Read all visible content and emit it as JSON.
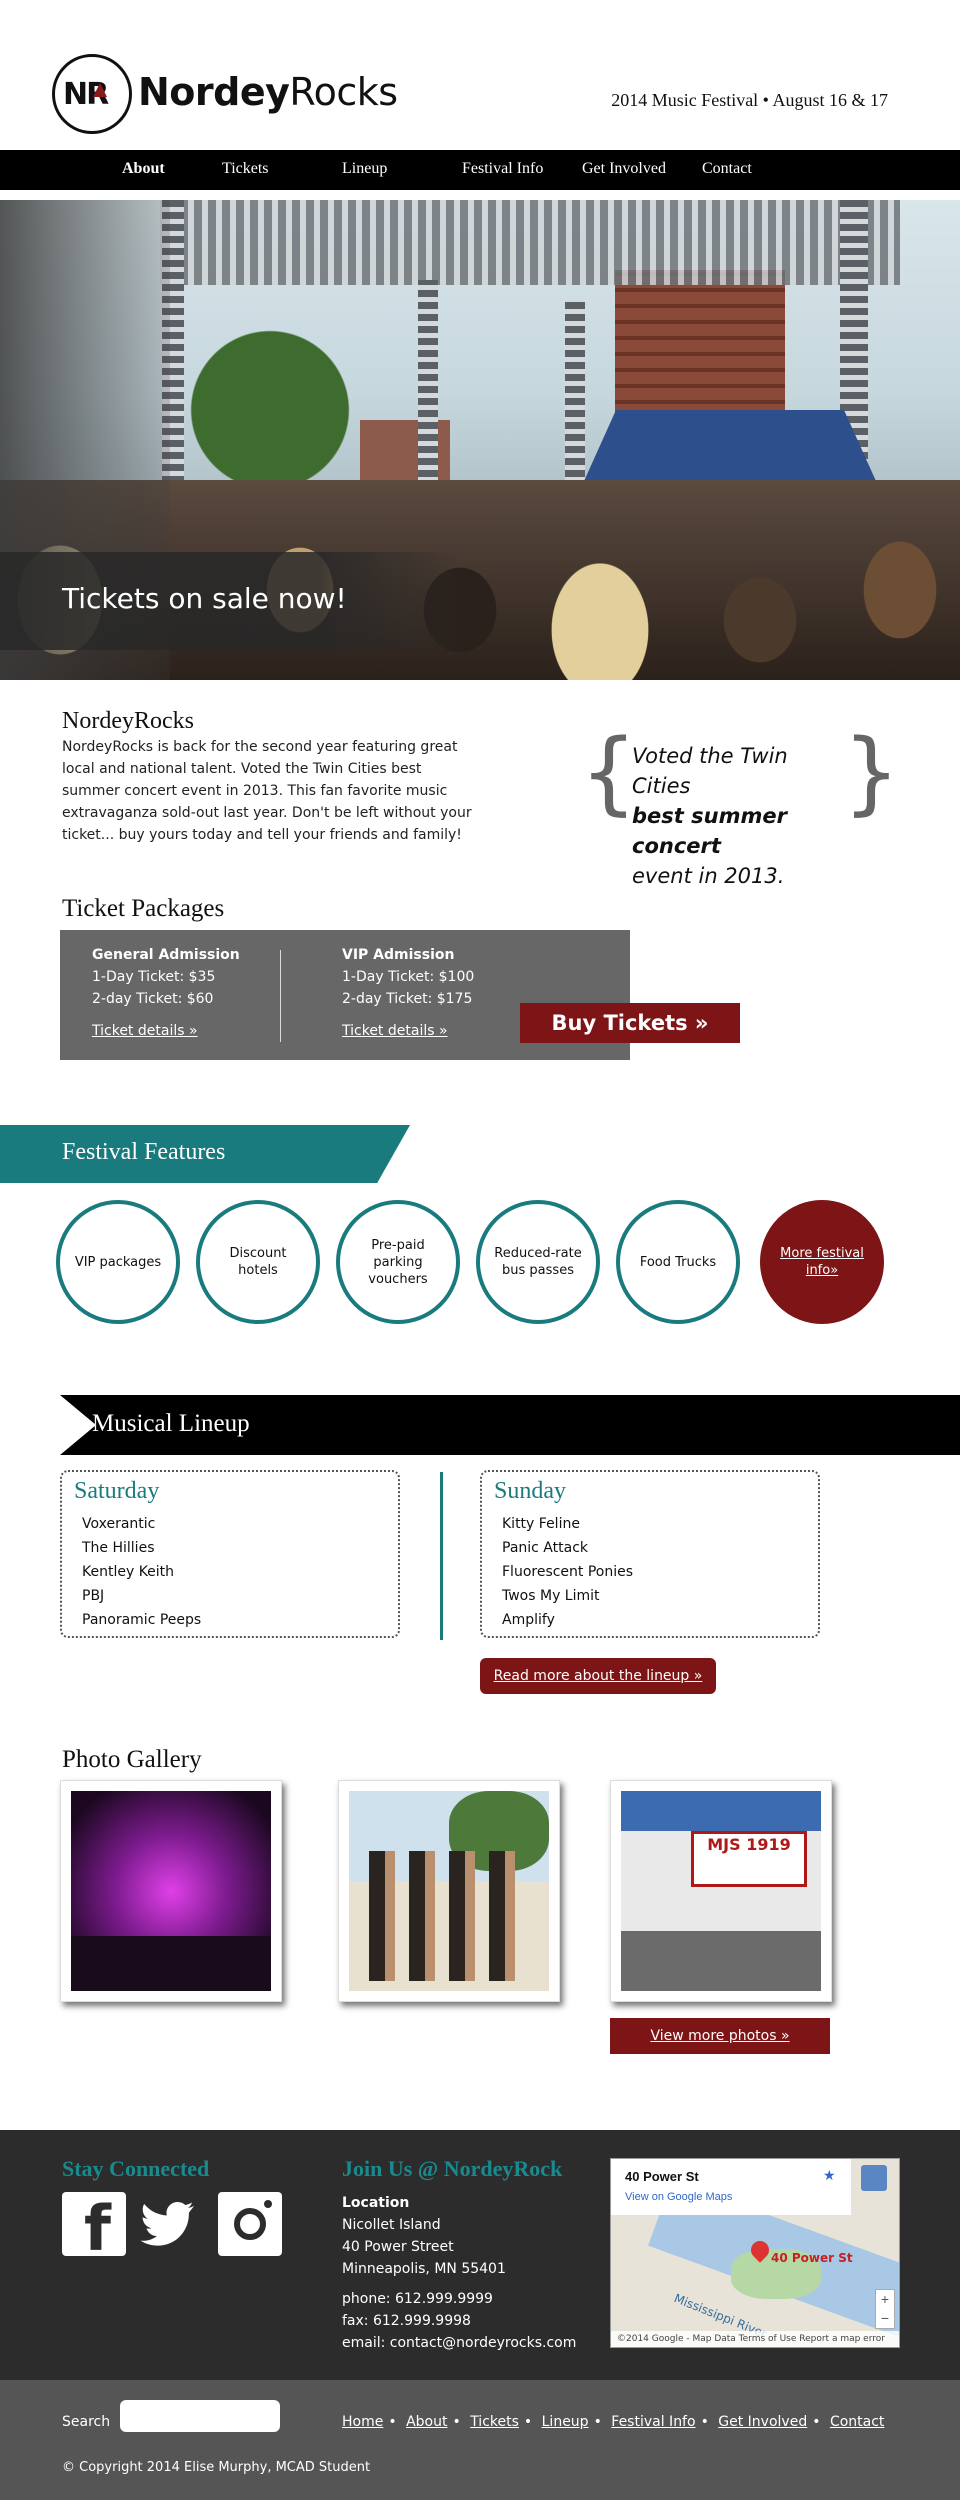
{
  "header": {
    "logo_mark": "NR",
    "logo_name_bold": "Nordey",
    "logo_name_rest": "Rocks",
    "tagline": "2014 Music Festival • August 16 & 17"
  },
  "nav": {
    "items": [
      "About",
      "Tickets",
      "Lineup",
      "Festival Info",
      "Get Involved",
      "Contact"
    ]
  },
  "hero": {
    "banner_text": "Tickets on sale now!"
  },
  "intro": {
    "title": "NordeyRocks",
    "body": "NordeyRocks is back for the second year featuring great local and national talent. Voted the Twin Cities best summer concert event in 2013. This fan favorite music extravaganza sold-out last year. Don't be left without your ticket... buy yours today and tell your friends and family!",
    "quote_start": "Voted the Twin Cities",
    "quote_bold": "best summer concert",
    "quote_end": "event in 2013."
  },
  "tickets": {
    "title": "Ticket Packages",
    "general": {
      "heading": "General Admission",
      "one_day": "1-Day Ticket: $35",
      "two_day": "2-day Ticket: $60",
      "link": "Ticket details",
      "raquo": "»"
    },
    "vip": {
      "heading": "VIP Admission",
      "one_day": "1-Day Ticket: $100",
      "two_day": "2-day Ticket: $175",
      "link": "Ticket details",
      "raquo": "»"
    },
    "buy_button": "Buy Tickets »"
  },
  "features": {
    "title": "Festival Features",
    "items": [
      "VIP packages",
      "Discount hotels",
      "Pre-paid parking vouchers",
      "Reduced-rate bus passes",
      "Food Trucks"
    ],
    "more": "More festival info»"
  },
  "lineup": {
    "title": "Musical Lineup",
    "saturday": {
      "day": "Saturday",
      "acts": [
        "Voxerantic",
        "The Hillies",
        "Kentley Keith",
        "PBJ",
        "Panoramic Peeps"
      ]
    },
    "sunday": {
      "day": "Sunday",
      "acts": [
        "Kitty Feline",
        "Panic Attack",
        "Fluorescent Ponies",
        "Twos My Limit",
        "Amplify"
      ]
    },
    "read_more": "Read more about the lineup »"
  },
  "gallery": {
    "title": "Photo Gallery",
    "view_more": "View more photos »",
    "sign_text": "MJS 1919"
  },
  "footer": {
    "stay_connected": "Stay Connected",
    "join_us": "Join Us @ NordeyRock",
    "location_label": "Location",
    "address_1": "Nicollet Island",
    "address_2": "40 Power Street",
    "address_3": "Minneapolis, MN 55401",
    "phone": "phone: 612.999.9999",
    "fax": "fax: 612.999.9998",
    "email": "email: contact@nordeyrocks.com",
    "map": {
      "place": "40 Power St",
      "link": "View on Google Maps",
      "pin_label": "40 Power St",
      "river": "Mississippi River",
      "credit": "©2014 Google - Map Data   Terms of Use   Report a map error"
    }
  },
  "bottom": {
    "search_label": "Search",
    "links": [
      "Home",
      "About",
      "Tickets",
      "Lineup",
      "Festival Info",
      "Get Involved",
      "Contact"
    ],
    "copyright": "© Copyright 2014 Elise Murphy, MCAD Student"
  },
  "colors": {
    "teal": "#1a7b7f",
    "maroon": "#7d1416",
    "nav_bg": "#000000",
    "footer_bg": "#2c2c2c"
  },
  "icons": [
    "facebook-icon",
    "twitter-icon",
    "instagram-icon",
    "map-pin-icon",
    "star-icon"
  ]
}
